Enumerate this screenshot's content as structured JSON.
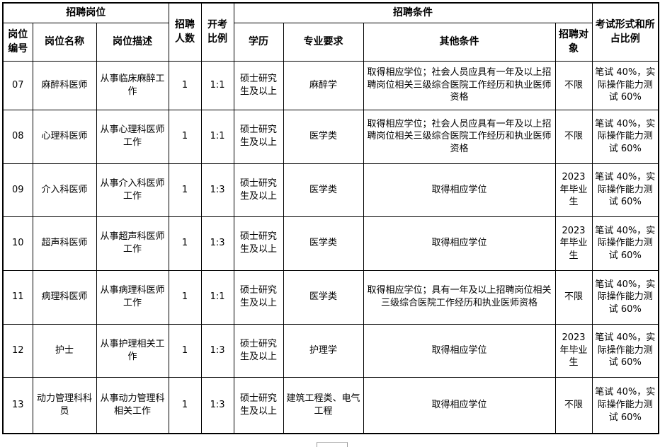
{
  "table": {
    "header": {
      "group_recruit_post": "招聘岗位",
      "recruit_count": "招聘人数",
      "exam_ratio": "开考比例",
      "group_conditions": "招聘条件",
      "exam_form": "考试形式和所占比例",
      "post_code": "岗位编号",
      "post_name": "岗位名称",
      "post_desc": "岗位描述",
      "education": "学历",
      "major": "专业要求",
      "other": "其他条件",
      "target": "招聘对象"
    },
    "rows": [
      {
        "code": "07",
        "name": "麻醉科医师",
        "desc": "从事临床麻醉工作",
        "count": "1",
        "ratio": "1:1",
        "education": "硕士研究生及以上",
        "major": "麻醉学",
        "other": "取得相应学位；社会人员应具有一年及以上招聘岗位相关三级综合医院工作经历和执业医师资格",
        "target": "不限",
        "exam": "笔试 40%，实际操作能力测试 60%"
      },
      {
        "code": "08",
        "name": "心理科医师",
        "desc": "从事心理科医师工作",
        "count": "1",
        "ratio": "1:1",
        "education": "硕士研究生及以上",
        "major": "医学类",
        "other": "取得相应学位；社会人员应具有一年及以上招聘岗位相关三级综合医院工作经历和执业医师资格",
        "target": "不限",
        "exam": "笔试 40%，实际操作能力测试 60%"
      },
      {
        "code": "09",
        "name": "介入科医师",
        "desc": "从事介入科医师工作",
        "count": "1",
        "ratio": "1:3",
        "education": "硕士研究生及以上",
        "major": "医学类",
        "other": "取得相应学位",
        "target": "2023年毕业生",
        "exam": "笔试 40%，实际操作能力测试 60%"
      },
      {
        "code": "10",
        "name": "超声科医师",
        "desc": "从事超声科医师工作",
        "count": "1",
        "ratio": "1:3",
        "education": "硕士研究生及以上",
        "major": "医学类",
        "other": "取得相应学位",
        "target": "2023年毕业生",
        "exam": "笔试 40%，实际操作能力测试 60%"
      },
      {
        "code": "11",
        "name": "病理科医师",
        "desc": "从事病理科医师工作",
        "count": "1",
        "ratio": "1:1",
        "education": "硕士研究生及以上",
        "major": "医学类",
        "other": "取得相应学位；具有一年及以上招聘岗位相关三级综合医院工作经历和执业医师资格",
        "target": "不限",
        "exam": "笔试 40%，实际操作能力测试 60%"
      },
      {
        "code": "12",
        "name": "护士",
        "desc": "从事护理相关工作",
        "count": "1",
        "ratio": "1:3",
        "education": "硕士研究生及以上",
        "major": "护理学",
        "other": "取得相应学位",
        "target": "2023年毕业生",
        "exam": "笔试 40%，实际操作能力测试 60%"
      },
      {
        "code": "13",
        "name": "动力管理科科员",
        "desc": "从事动力管理科相关工作",
        "count": "1",
        "ratio": "1:3",
        "education": "硕士研究生及以上",
        "major": "建筑工程类、电气工程",
        "other": "取得相应学位",
        "target": "不限",
        "exam": "笔试 40%，实际操作能力测试 60%"
      }
    ]
  }
}
